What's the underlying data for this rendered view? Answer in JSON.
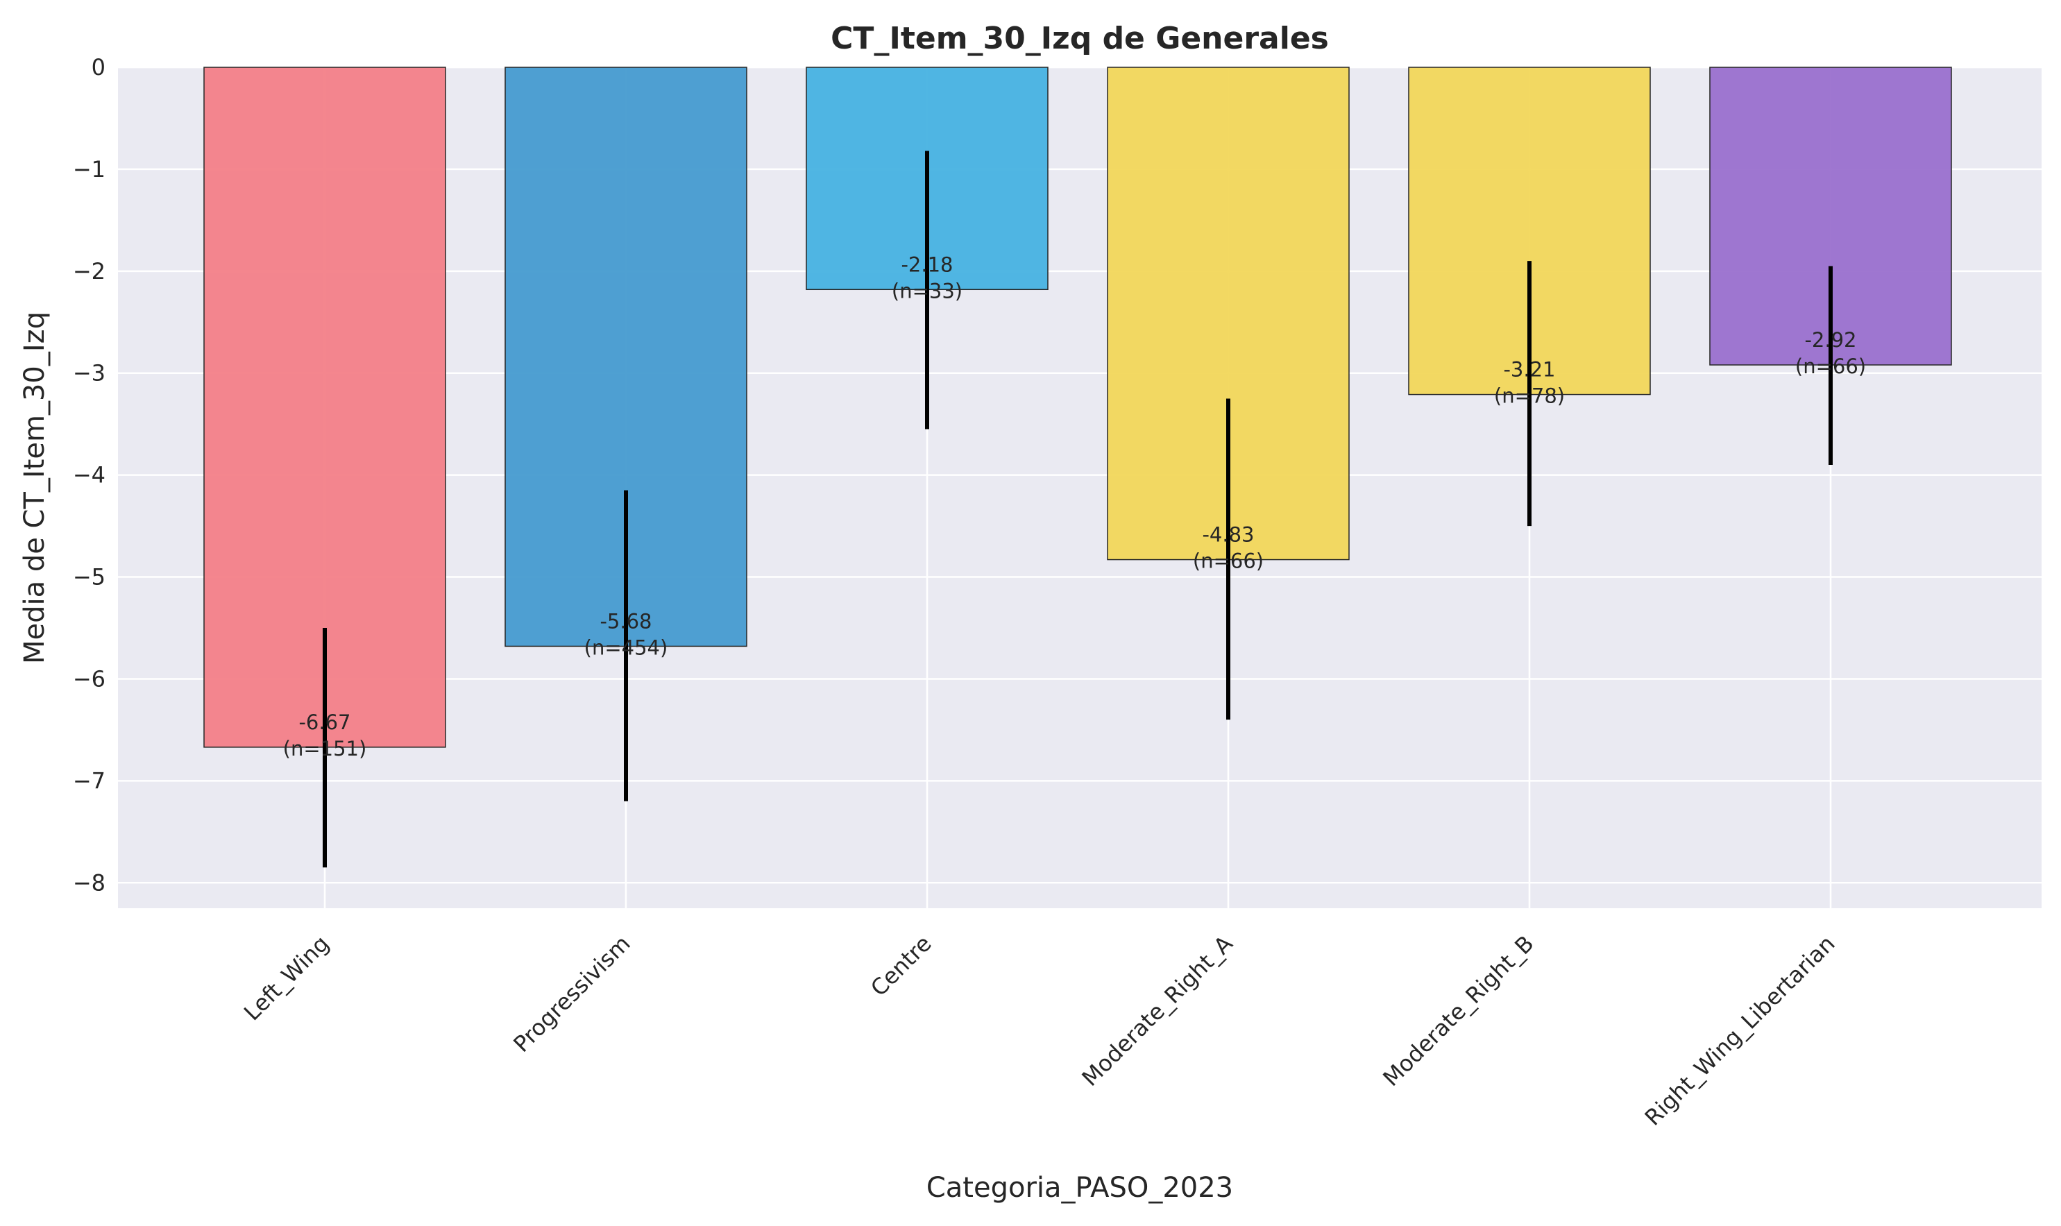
{
  "chart_data": {
    "type": "bar",
    "title": "CT_Item_30_Izq de Generales",
    "xlabel": "Categoria_PASO_2023",
    "ylabel": "Media de CT_Item_30_Izq",
    "categories": [
      "Left_Wing",
      "Progressivism",
      "Centre",
      "Moderate_Right_A",
      "Moderate_Right_B",
      "Right_Wing_Libertarian"
    ],
    "values": [
      -6.67,
      -5.68,
      -2.18,
      -4.83,
      -3.21,
      -2.92
    ],
    "value_labels": [
      "-6.67",
      "-5.68",
      "-2.18",
      "-4.83",
      "-3.21",
      "-2.92"
    ],
    "n_labels": [
      "(n=151)",
      "(n=454)",
      "(n=33)",
      "(n=66)",
      "(n=78)",
      "(n=66)"
    ],
    "error_low": [
      -7.85,
      -7.2,
      -3.55,
      -6.4,
      -4.5,
      -3.9
    ],
    "error_high": [
      -5.5,
      -4.15,
      -0.82,
      -3.25,
      -1.9,
      -1.95
    ],
    "colors": [
      "#f37f88",
      "#469bd0",
      "#47b2e2",
      "#f2d75a",
      "#f2d75a",
      "#9a70cd"
    ],
    "ylim": [
      -8.25,
      0
    ],
    "yticks": [
      0,
      -1,
      -2,
      -3,
      -4,
      -5,
      -6,
      -7,
      -8
    ],
    "ytick_labels": [
      "0",
      "−1",
      "−2",
      "−3",
      "−4",
      "−5",
      "−6",
      "−7",
      "−8"
    ],
    "grid": true,
    "background_color": "#eaeaf2"
  }
}
